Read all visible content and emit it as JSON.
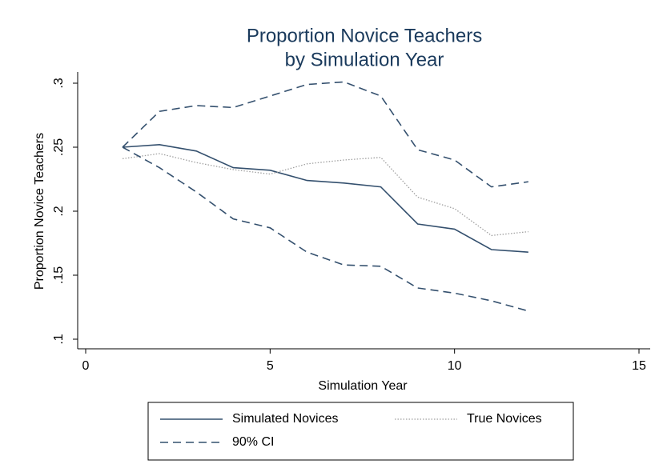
{
  "chart_data": {
    "type": "line",
    "title": [
      "Proportion Novice Teachers",
      "by Simulation Year"
    ],
    "x_label": "Simulation Year",
    "y_label": "Proportion Novice Teachers",
    "x": [
      1,
      2,
      3,
      4,
      5,
      6,
      7,
      8,
      9,
      10,
      11,
      12
    ],
    "xlim": [
      0,
      15
    ],
    "xticks": [
      0,
      5,
      10,
      15
    ],
    "ylim": [
      0.1,
      0.3
    ],
    "yticks": [
      {
        "value": 0.1,
        "label": ".1"
      },
      {
        "value": 0.15,
        "label": ".15"
      },
      {
        "value": 0.2,
        "label": ".2"
      },
      {
        "value": 0.25,
        "label": ".25"
      },
      {
        "value": 0.3,
        "label": ".3"
      }
    ],
    "grid": false,
    "series": [
      {
        "name": "Simulated Novices",
        "color": "#34506e",
        "style": "solid",
        "values": [
          0.25,
          0.252,
          0.247,
          0.234,
          0.232,
          0.224,
          0.222,
          0.219,
          0.19,
          0.186,
          0.17,
          0.168
        ]
      },
      {
        "name": "True Novices",
        "color": "#a0a0a0",
        "style": "dotted",
        "values": [
          0.241,
          0.245,
          0.238,
          0.2325,
          0.229,
          0.237,
          0.24,
          0.242,
          0.211,
          0.202,
          0.181,
          0.184
        ]
      },
      {
        "name": "90% CI",
        "color": "#34506e",
        "style": "dashed",
        "upper": [
          0.25,
          0.278,
          0.2825,
          0.281,
          0.29,
          0.299,
          0.301,
          0.29,
          0.248,
          0.24,
          0.219,
          0.223
        ],
        "lower": [
          0.25,
          0.234,
          0.215,
          0.194,
          0.187,
          0.168,
          0.158,
          0.157,
          0.14,
          0.136,
          0.13,
          0.122
        ]
      }
    ]
  }
}
